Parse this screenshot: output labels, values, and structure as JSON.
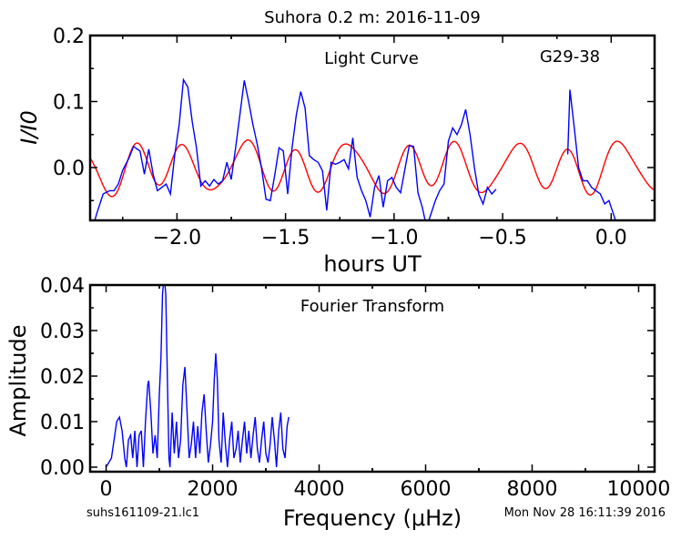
{
  "figure": {
    "suptitle": "Suhora 0.2 m:  2016-11-09",
    "footer_left": "suhs161109-21.lc1",
    "footer_right": "Mon Nov 28 16:11:39 2016"
  },
  "chart_data": [
    {
      "type": "line",
      "title": "Light Curve",
      "annotation": "G29-38",
      "xlabel": "hours UT",
      "ylabel": "I/I0",
      "xlim": [
        -2.4,
        0.2
      ],
      "ylim": [
        -0.08,
        0.2
      ],
      "xticks": [
        -2.0,
        -1.5,
        -1.0,
        -0.5,
        0.0
      ],
      "xtick_labels": [
        "−2.0",
        "−1.5",
        "−1.0",
        "−0.5",
        "0.0"
      ],
      "yticks": [
        0.0,
        0.1,
        0.2
      ],
      "ytick_labels": [
        "0.0",
        "0.1",
        "0.2"
      ],
      "grid": false,
      "series": [
        {
          "color": "#0000ff",
          "segments": [
            [
              [
                -2.4,
                -0.105
              ],
              [
                -2.37,
                -0.07
              ],
              [
                -2.34,
                -0.04
              ],
              [
                -2.31,
                -0.035
              ],
              [
                -2.29,
                -0.035
              ],
              [
                -2.27,
                -0.025
              ],
              [
                -2.25,
                -0.004
              ],
              [
                -2.22,
                0.015
              ],
              [
                -2.2,
                0.032
              ],
              [
                -2.17,
                0.025
              ],
              [
                -2.15,
                -0.01
              ],
              [
                -2.13,
                0.028
              ],
              [
                -2.11,
                -0.01
              ],
              [
                -2.09,
                -0.035
              ],
              [
                -2.07,
                -0.03
              ],
              [
                -2.05,
                -0.025
              ],
              [
                -2.03,
                -0.04
              ],
              [
                -2.01,
                0.02
              ],
              [
                -1.99,
                0.065
              ],
              [
                -1.97,
                0.133
              ],
              [
                -1.95,
                0.122
              ],
              [
                -1.93,
                0.07
              ],
              [
                -1.91,
                0.03
              ],
              [
                -1.89,
                -0.028
              ],
              [
                -1.87,
                -0.02
              ],
              [
                -1.85,
                -0.028
              ],
              [
                -1.83,
                -0.018
              ],
              [
                -1.81,
                -0.025
              ],
              [
                -1.79,
                -0.02
              ],
              [
                -1.77,
                0.008
              ],
              [
                -1.75,
                -0.018
              ],
              [
                -1.73,
                0.03
              ],
              [
                -1.71,
                0.08
              ],
              [
                -1.69,
                0.132
              ],
              [
                -1.67,
                0.1
              ],
              [
                -1.65,
                0.065
              ],
              [
                -1.63,
                0.035
              ],
              [
                -1.61,
                -0.002
              ],
              [
                -1.59,
                -0.048
              ],
              [
                -1.57,
                -0.05
              ],
              [
                -1.55,
                -0.012
              ],
              [
                -1.53,
                0.03
              ],
              [
                -1.51,
                0.025
              ],
              [
                -1.49,
                -0.04
              ],
              [
                -1.47,
                0.03
              ],
              [
                -1.45,
                0.08
              ],
              [
                -1.43,
                0.115
              ],
              [
                -1.41,
                0.09
              ],
              [
                -1.39,
                0.018
              ],
              [
                -1.37,
                0.012
              ],
              [
                -1.35,
                0.008
              ],
              [
                -1.33,
                -0.005
              ],
              [
                -1.31,
                -0.065
              ],
              [
                -1.29,
                0.008
              ],
              [
                -1.27,
                0.005
              ],
              [
                -1.25,
                0.008
              ],
              [
                -1.23,
                0.012
              ],
              [
                -1.21,
                -0.002
              ],
              [
                -1.19,
                0.045
              ],
              [
                -1.17,
                -0.015
              ],
              [
                -1.15,
                -0.035
              ],
              [
                -1.13,
                -0.05
              ],
              [
                -1.11,
                -0.075
              ],
              [
                -1.09,
                -0.03
              ],
              [
                -1.07,
                -0.012
              ],
              [
                -1.05,
                -0.06
              ],
              [
                -1.03,
                -0.02
              ],
              [
                -1.01,
                -0.015
              ],
              [
                -0.99,
                -0.03
              ],
              [
                -0.97,
                -0.038
              ],
              [
                -0.95,
                -0.002
              ],
              [
                -0.93,
                0.033
              ],
              [
                -0.91,
                0.032
              ],
              [
                -0.89,
                -0.038
              ],
              [
                -0.87,
                -0.06
              ],
              [
                -0.85,
                -0.09
              ],
              [
                -0.83,
                -0.07
              ],
              [
                -0.81,
                -0.05
              ],
              [
                -0.79,
                -0.035
              ],
              [
                -0.77,
                -0.025
              ],
              [
                -0.75,
                0.04
              ],
              [
                -0.73,
                0.06
              ],
              [
                -0.71,
                0.05
              ],
              [
                -0.69,
                0.065
              ],
              [
                -0.67,
                0.088
              ],
              [
                -0.65,
                0.05
              ],
              [
                -0.63,
                0.0
              ],
              [
                -0.61,
                -0.04
              ],
              [
                -0.59,
                -0.055
              ],
              [
                -0.57,
                -0.03
              ],
              [
                -0.55,
                -0.04
              ],
              [
                -0.53,
                -0.033
              ]
            ],
            [
              [
                -0.2,
                0.02
              ],
              [
                -0.19,
                0.118
              ],
              [
                -0.17,
                0.06
              ],
              [
                -0.15,
                0.0
              ],
              [
                -0.13,
                -0.02
              ],
              [
                -0.11,
                -0.02
              ],
              [
                -0.09,
                -0.03
              ],
              [
                -0.07,
                -0.035
              ],
              [
                -0.05,
                -0.04
              ],
              [
                -0.03,
                -0.055
              ],
              [
                -0.01,
                -0.05
              ],
              [
                0.01,
                -0.07
              ],
              [
                0.03,
                -0.09
              ]
            ]
          ]
        },
        {
          "color": "#ff0000",
          "model": "sum-of-sinusoids",
          "components": [
            {
              "amplitude": 0.03,
              "period_hours": 0.25,
              "phase": 0.3
            },
            {
              "amplitude": 0.015,
              "period_hours": 0.42,
              "phase": 1.1
            },
            {
              "amplitude": 0.012,
              "period_hours": 0.18,
              "phase": 2.2
            }
          ]
        }
      ]
    },
    {
      "type": "line",
      "title": "Fourier Transform",
      "xlabel": "Frequency (μHz)",
      "ylabel": "Amplitude",
      "xlim": [
        -300,
        10300
      ],
      "ylim": [
        -0.001,
        0.04
      ],
      "xticks": [
        0,
        2000,
        4000,
        6000,
        8000,
        10000
      ],
      "xtick_labels": [
        "0",
        "2000",
        "4000",
        "6000",
        "8000",
        "10000"
      ],
      "yticks": [
        0.0,
        0.01,
        0.02,
        0.03,
        0.04
      ],
      "ytick_labels": [
        "0.00",
        "0.01",
        "0.02",
        "0.03",
        "0.04"
      ],
      "grid": false,
      "series": [
        {
          "color": "#0000ff",
          "points": [
            [
              0,
              0.0
            ],
            [
              100,
              0.002
            ],
            [
              150,
              0.006
            ],
            [
              200,
              0.01
            ],
            [
              250,
              0.011
            ],
            [
              300,
              0.008
            ],
            [
              350,
              0.002
            ],
            [
              380,
              0.0
            ],
            [
              420,
              0.006
            ],
            [
              460,
              0.007
            ],
            [
              500,
              0.002
            ],
            [
              540,
              0.008
            ],
            [
              580,
              0.0
            ],
            [
              620,
              0.007
            ],
            [
              660,
              0.008
            ],
            [
              700,
              0.0
            ],
            [
              740,
              0.01
            ],
            [
              780,
              0.018
            ],
            [
              800,
              0.019
            ],
            [
              840,
              0.012
            ],
            [
              880,
              0.003
            ],
            [
              920,
              0.007
            ],
            [
              960,
              0.002
            ],
            [
              1000,
              0.016
            ],
            [
              1030,
              0.024
            ],
            [
              1060,
              0.038
            ],
            [
              1090,
              0.042
            ],
            [
              1120,
              0.038
            ],
            [
              1150,
              0.02
            ],
            [
              1180,
              0.002
            ],
            [
              1200,
              0.0
            ],
            [
              1240,
              0.012
            ],
            [
              1280,
              0.003
            ],
            [
              1320,
              0.01
            ],
            [
              1360,
              0.002
            ],
            [
              1400,
              0.006
            ],
            [
              1440,
              0.018
            ],
            [
              1480,
              0.022
            ],
            [
              1520,
              0.012
            ],
            [
              1560,
              0.002
            ],
            [
              1600,
              0.005
            ],
            [
              1640,
              0.01
            ],
            [
              1680,
              0.002
            ],
            [
              1720,
              0.009
            ],
            [
              1760,
              0.003
            ],
            [
              1800,
              0.012
            ],
            [
              1840,
              0.016
            ],
            [
              1880,
              0.008
            ],
            [
              1920,
              0.001
            ],
            [
              1960,
              0.005
            ],
            [
              2000,
              0.01
            ],
            [
              2030,
              0.019
            ],
            [
              2060,
              0.025
            ],
            [
              2090,
              0.019
            ],
            [
              2120,
              0.006
            ],
            [
              2160,
              0.001
            ],
            [
              2200,
              0.012
            ],
            [
              2240,
              0.005
            ],
            [
              2280,
              0.0
            ],
            [
              2320,
              0.006
            ],
            [
              2360,
              0.01
            ],
            [
              2400,
              0.002
            ],
            [
              2440,
              0.004
            ],
            [
              2480,
              0.008
            ],
            [
              2520,
              0.001
            ],
            [
              2560,
              0.006
            ],
            [
              2600,
              0.01
            ],
            [
              2640,
              0.003
            ],
            [
              2680,
              0.008
            ],
            [
              2720,
              0.002
            ],
            [
              2760,
              0.007
            ],
            [
              2800,
              0.011
            ],
            [
              2840,
              0.004
            ],
            [
              2880,
              0.001
            ],
            [
              2920,
              0.006
            ],
            [
              2960,
              0.01
            ],
            [
              3000,
              0.003
            ],
            [
              3040,
              0.001
            ],
            [
              3080,
              0.005
            ],
            [
              3120,
              0.011
            ],
            [
              3160,
              0.006
            ],
            [
              3200,
              0.0
            ],
            [
              3240,
              0.008
            ],
            [
              3280,
              0.012
            ],
            [
              3320,
              0.004
            ],
            [
              3360,
              0.002
            ],
            [
              3400,
              0.009
            ],
            [
              3430,
              0.011
            ]
          ]
        }
      ]
    }
  ]
}
